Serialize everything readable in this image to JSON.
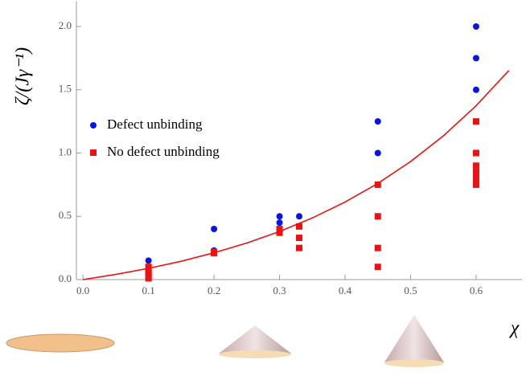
{
  "chart_data": {
    "type": "scatter",
    "y_label": "ζ/(Jγ⁻¹)",
    "x_label": "χ",
    "xlim": [
      -0.01,
      0.67
    ],
    "ylim": [
      0,
      2.2
    ],
    "xticks": [
      {
        "value": 0,
        "label": "0.0"
      },
      0.1,
      0.2,
      0.3,
      0.4,
      0.5,
      0.6
    ],
    "yticks": [
      {
        "value": 0,
        "label": "0.0"
      },
      0.5,
      {
        "value": 1,
        "label": "1.0"
      },
      1.5,
      {
        "value": 2,
        "label": "2.0"
      }
    ],
    "series": [
      {
        "name": "Defect unbinding",
        "color": "#0a14e6",
        "marker": "circle",
        "x": [
          0.1,
          0.2,
          0.2,
          0.3,
          0.3,
          0.33,
          0.45,
          0.45,
          0.6,
          0.6,
          0.6
        ],
        "values": [
          0.15,
          0.4,
          0.23,
          0.5,
          0.45,
          0.5,
          1.25,
          1.0,
          2.0,
          1.75,
          1.5
        ]
      },
      {
        "name": "No defect unbinding",
        "color": "#ee1111",
        "marker": "square",
        "x": [
          0.1,
          0.1,
          0.1,
          0.1,
          0.1,
          0.2,
          0.2,
          0.3,
          0.3,
          0.33,
          0.33,
          0.33,
          0.45,
          0.45,
          0.45,
          0.45,
          0.6,
          0.6,
          0.6,
          0.6,
          0.6,
          0.6
        ],
        "values": [
          0.1,
          0.07,
          0.05,
          0.03,
          0.01,
          0.22,
          0.21,
          0.4,
          0.37,
          0.42,
          0.33,
          0.25,
          0.75,
          0.5,
          0.25,
          0.1,
          1.25,
          1.0,
          0.9,
          0.85,
          0.8,
          0.75
        ]
      },
      {
        "color": "#ee1111",
        "marker": "line",
        "x": [
          0,
          0.05,
          0.1,
          0.15,
          0.2,
          0.25,
          0.3,
          0.35,
          0.4,
          0.45,
          0.5,
          0.55,
          0.6,
          0.65
        ],
        "values": [
          0,
          0.041,
          0.089,
          0.145,
          0.212,
          0.289,
          0.38,
          0.487,
          0.613,
          0.76,
          0.933,
          1.136,
          1.374,
          1.653
        ]
      }
    ]
  }
}
